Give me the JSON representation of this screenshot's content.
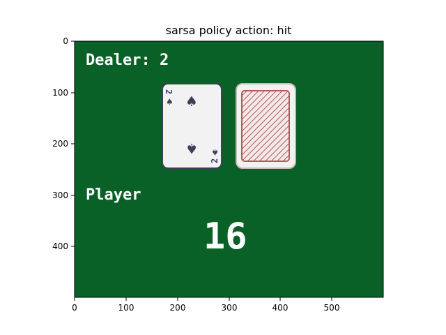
{
  "figure": {
    "title": "sarsa policy action: hit"
  },
  "game": {
    "dealer_label": "Dealer: 2",
    "player_label": "Player",
    "player_sum": "16",
    "dealer_card": {
      "rank": "2",
      "suit": "spade",
      "suit_glyph": "♠"
    },
    "hidden_card": "card-back"
  },
  "axes": {
    "x_ticks": [
      "0",
      "100",
      "200",
      "300",
      "400",
      "500"
    ],
    "y_ticks": [
      "0",
      "100",
      "200",
      "300",
      "400"
    ],
    "x_limit": [
      0,
      600
    ],
    "y_limit": [
      500,
      0
    ]
  },
  "colors": {
    "table_green": "#0a6127",
    "card_face": "#f2f2f2",
    "card_ink": "#3b3f58",
    "card_back_red": "#b35a5a",
    "text_white": "#ffffff"
  }
}
